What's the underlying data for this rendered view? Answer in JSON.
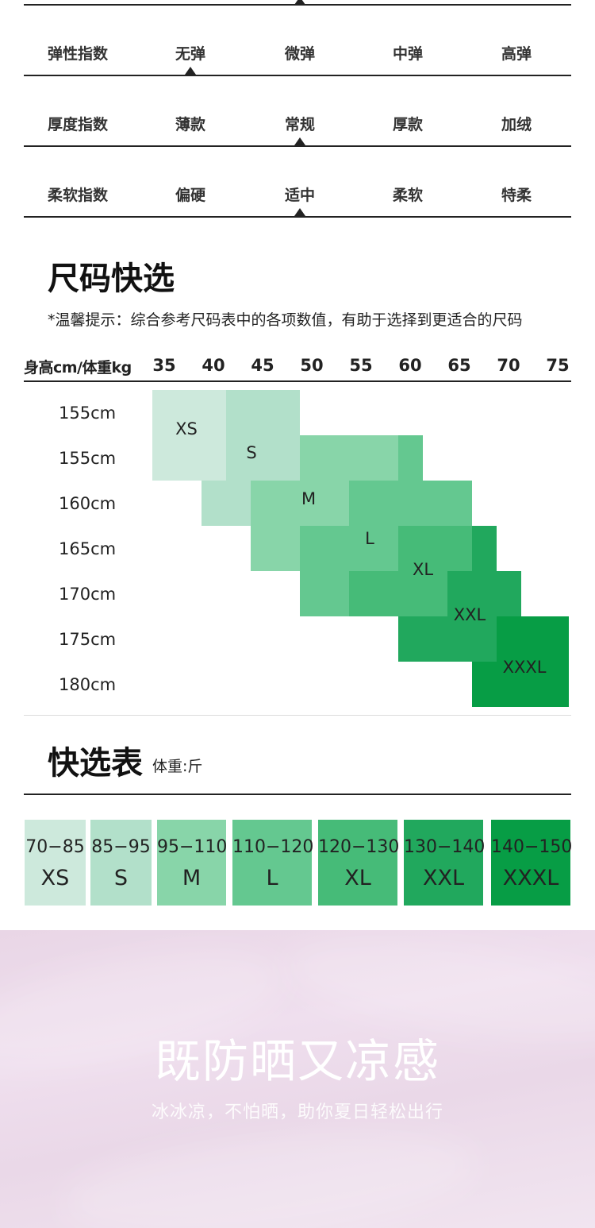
{
  "indices": [
    {
      "label": "弹性指数",
      "options": [
        "无弹",
        "微弹",
        "中弹",
        "高弹"
      ],
      "selected": 0
    },
    {
      "label": "厚度指数",
      "options": [
        "薄款",
        "常规",
        "厚款",
        "加绒"
      ],
      "selected": 1
    },
    {
      "label": "柔软指数",
      "options": [
        "偏硬",
        "适中",
        "柔软",
        "特柔"
      ],
      "selected": 1
    }
  ],
  "size_section": {
    "title": "尺码快选",
    "hint": "*温馨提示：综合参考尺码表中的各项数值，有助于选择到更适合的尺码",
    "header_label": "身高cm/体重kg",
    "weights": [
      "35",
      "40",
      "45",
      "50",
      "55",
      "60",
      "65",
      "70",
      "75"
    ],
    "heights": [
      "155cm",
      "155cm",
      "160cm",
      "165cm",
      "170cm",
      "175cm",
      "180cm"
    ],
    "sizes": [
      "XS",
      "S",
      "M",
      "L",
      "XL",
      "XXL",
      "XXXL"
    ]
  },
  "quick_table": {
    "title": "快选表",
    "unit": "体重:斤",
    "cards": [
      {
        "range": "70−85",
        "size": "XS"
      },
      {
        "range": "85−95",
        "size": "S"
      },
      {
        "range": "95−110",
        "size": "M"
      },
      {
        "range": "110−120",
        "size": "L"
      },
      {
        "range": "120−130",
        "size": "XL"
      },
      {
        "range": "130−140",
        "size": "XXL"
      },
      {
        "range": "140−150",
        "size": "XXXL"
      }
    ]
  },
  "banner": {
    "headline": "既防晒又凉感",
    "subline": "冰冰凉，不怕晒，助你夏日轻松出行"
  },
  "colors": {
    "XS": "#cde9dc",
    "S": "#b2e0ca",
    "M": "#88d5a9",
    "L": "#64c890",
    "XL": "#46bb78",
    "XXL": "#21a85d",
    "XXXL": "#079d45"
  }
}
